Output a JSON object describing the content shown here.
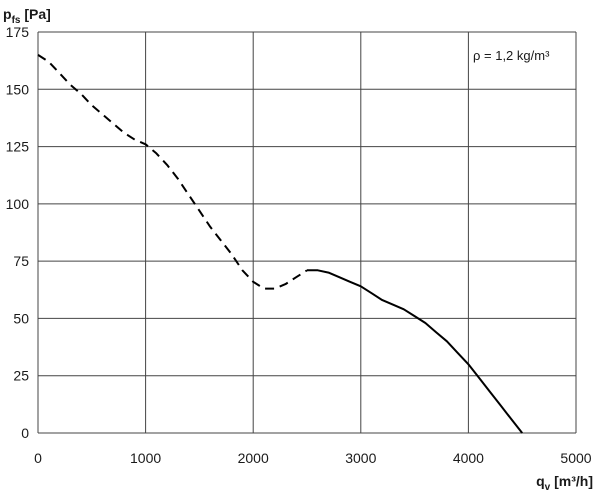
{
  "chart_data": {
    "type": "line",
    "title": "",
    "ylabel": {
      "main": "p",
      "sub": "fs",
      "unit": " [Pa]"
    },
    "xlabel": {
      "main": "q",
      "sub": "v",
      "unit": " [m³/h]"
    },
    "xlim": [
      0,
      5000
    ],
    "ylim": [
      0,
      175
    ],
    "x_ticks": [
      0,
      1000,
      2000,
      3000,
      4000,
      5000
    ],
    "y_ticks": [
      0,
      25,
      50,
      75,
      100,
      125,
      150,
      175
    ],
    "grid": true,
    "annotation": "ρ = 1,2 kg/m³",
    "series": [
      {
        "style": "dashed",
        "points": [
          [
            0,
            165
          ],
          [
            100,
            162
          ],
          [
            200,
            157
          ],
          [
            300,
            152
          ],
          [
            400,
            148
          ],
          [
            500,
            143
          ],
          [
            600,
            139
          ],
          [
            700,
            135
          ],
          [
            800,
            131
          ],
          [
            900,
            128
          ],
          [
            1000,
            126
          ],
          [
            1100,
            122
          ],
          [
            1200,
            117
          ],
          [
            1300,
            111
          ],
          [
            1400,
            104
          ],
          [
            1500,
            97
          ],
          [
            1600,
            90
          ],
          [
            1700,
            84
          ],
          [
            1800,
            78
          ],
          [
            1900,
            71
          ],
          [
            2000,
            66
          ],
          [
            2100,
            63
          ],
          [
            2200,
            63
          ],
          [
            2300,
            65
          ],
          [
            2400,
            68
          ],
          [
            2500,
            71
          ]
        ]
      },
      {
        "style": "solid",
        "points": [
          [
            2500,
            71
          ],
          [
            2600,
            71
          ],
          [
            2700,
            70
          ],
          [
            2800,
            68
          ],
          [
            2900,
            66
          ],
          [
            3000,
            64
          ],
          [
            3100,
            61
          ],
          [
            3200,
            58
          ],
          [
            3300,
            56
          ],
          [
            3400,
            54
          ],
          [
            3500,
            51
          ],
          [
            3600,
            48
          ],
          [
            3700,
            44
          ],
          [
            3800,
            40
          ],
          [
            3900,
            35
          ],
          [
            4000,
            30
          ],
          [
            4100,
            24
          ],
          [
            4200,
            18
          ],
          [
            4300,
            12
          ],
          [
            4400,
            6
          ],
          [
            4500,
            0
          ]
        ]
      }
    ]
  }
}
